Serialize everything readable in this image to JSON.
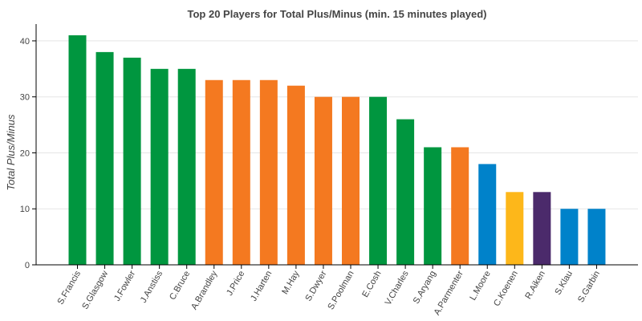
{
  "chart_data": {
    "type": "bar",
    "title": "Top 20 Players for Total Plus/Minus (min. 15 minutes played)",
    "xlabel": "",
    "ylabel": "Total Plus/Minus",
    "ylim": [
      0,
      43
    ],
    "yticks": [
      0,
      10,
      20,
      30,
      40
    ],
    "grid": true,
    "categories": [
      "S.Francis",
      "S.Glasgow",
      "J.Fowler",
      "J.Anstiss",
      "C.Bruce",
      "A.Brandley",
      "J.Price",
      "J.Harten",
      "M.Hay",
      "S.Dwyer",
      "S.Poolman",
      "E.Cosh",
      "V.Charles",
      "S.Aryang",
      "A.Parmenter",
      "L.Moore",
      "C.Koenen",
      "R.Aiken",
      "S.Klau",
      "S.Garbin"
    ],
    "values": [
      41,
      38,
      37,
      35,
      35,
      33,
      33,
      33,
      32,
      30,
      30,
      30,
      26,
      21,
      21,
      18,
      13,
      13,
      10,
      10
    ],
    "colors": [
      "#00963f",
      "#00963f",
      "#00963f",
      "#00963f",
      "#00963f",
      "#f47920",
      "#f47920",
      "#f47920",
      "#f47920",
      "#f47920",
      "#f47920",
      "#00963f",
      "#00963f",
      "#00963f",
      "#f47920",
      "#0082ca",
      "#fdb71a",
      "#4b2a6b",
      "#0082ca",
      "#0082ca"
    ]
  }
}
